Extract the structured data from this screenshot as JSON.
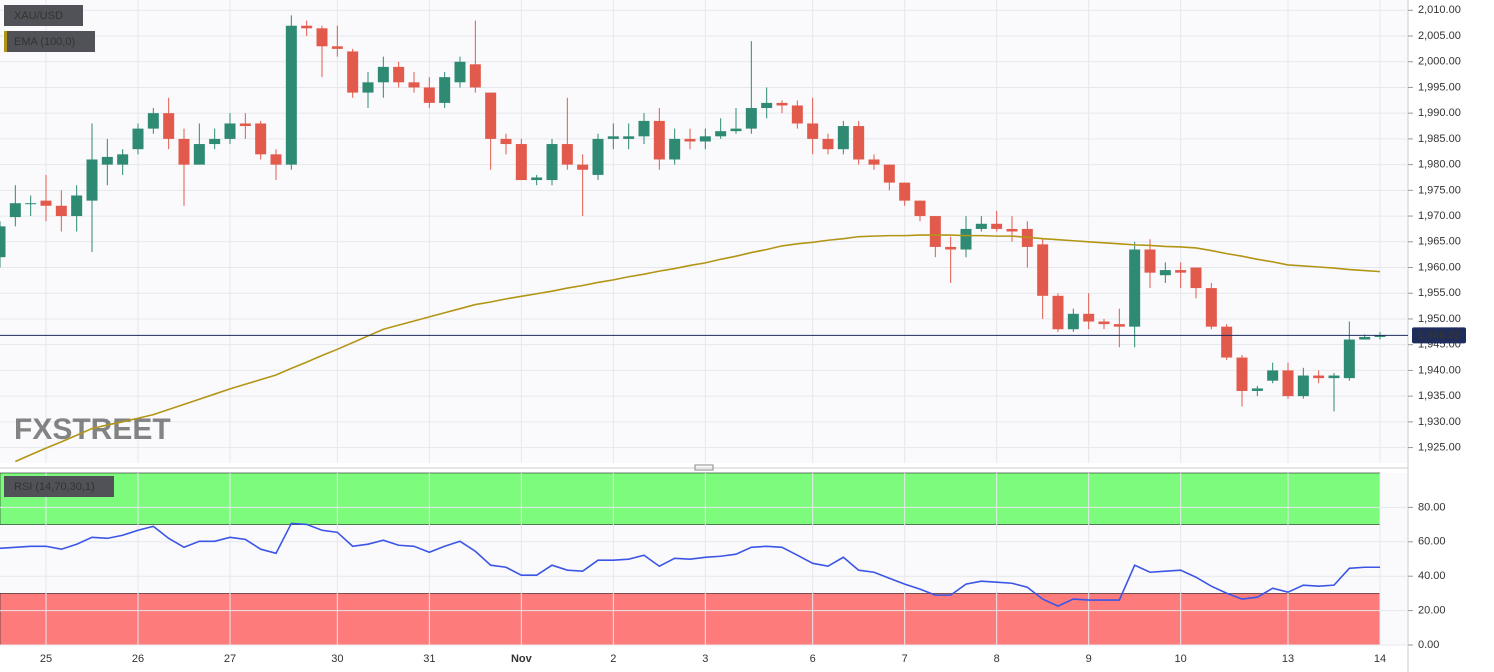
{
  "chart_data": [
    {
      "type": "candlestick",
      "title": "XAU/USD",
      "series": [
        {
          "name": "XAU/USD",
          "up_color": "#2e8a73",
          "down_color": "#e15a4c",
          "open": [
            1962,
            1969.8,
            1972.5,
            1973,
            1972,
            1970,
            1973,
            1980,
            1980,
            1983,
            1987,
            1990,
            1985,
            1980,
            1984,
            1985,
            1988,
            1988,
            1982,
            1980,
            2007,
            2006.5,
            2003,
            2002,
            1994,
            1996,
            1999,
            1996,
            1995,
            1992,
            1996,
            1999.5,
            1994,
            1985,
            1984,
            1977,
            1977,
            1984,
            1980,
            1978,
            1985,
            1985,
            1985.5,
            1988.5,
            1981,
            1985,
            1984.5,
            1985.5,
            1986.5,
            1987,
            1991,
            1992,
            1991.5,
            1988,
            1985,
            1983,
            1987.5,
            1981,
            1980,
            1976.5,
            1973,
            1970,
            1964,
            1963.5,
            1967.5,
            1968.5,
            1967.5,
            1967.5,
            1964.5,
            1954.5,
            1948,
            1951,
            1949.5,
            1949,
            1948.5,
            1963.5,
            1958.5,
            1959.5,
            1960,
            1956,
            1948.5,
            1942.5,
            1936,
            1938,
            1940,
            1935,
            1939,
            1938.5,
            1938.5,
            1946,
            1946.5
          ],
          "high": [
            1969,
            1976,
            1974,
            1978,
            1975,
            1976,
            1988,
            1985,
            1983,
            1988,
            1991,
            1993,
            1987,
            1988,
            1987,
            1990,
            1990,
            1988.5,
            1983,
            2009,
            2008,
            2007,
            2007,
            2002.5,
            1998,
            2001,
            2000,
            1998,
            1997,
            1998,
            2001,
            2008,
            1994,
            1986,
            1985,
            1978,
            1985,
            1993,
            1982,
            1986,
            1988,
            1988,
            1990,
            1991,
            1987,
            1987,
            1987,
            1989,
            1991,
            2004,
            1995,
            1992.5,
            1992.5,
            1993,
            1986,
            1988.5,
            1988.5,
            1982,
            1980,
            1976.5,
            1973,
            1970,
            1966,
            1970,
            1970,
            1971,
            1970,
            1969,
            1965.5,
            1955,
            1952,
            1955,
            1950,
            1952,
            1965,
            1965.5,
            1961,
            1961,
            1960,
            1957,
            1949,
            1943,
            1937,
            1941.5,
            1941.5,
            1940.5,
            1940,
            1939.5,
            1949.5,
            1947,
            1947.5
          ],
          "low": [
            1960,
            1968,
            1970,
            1969,
            1967,
            1967,
            1963,
            1976,
            1978,
            1982,
            1986,
            1983,
            1972,
            1980,
            1983,
            1984,
            1985,
            1981,
            1977,
            1979,
            2005,
            1997,
            2001,
            1993,
            1991,
            1993,
            1995,
            1994,
            1991,
            1991,
            1995,
            1994,
            1979,
            1982,
            1977,
            1976,
            1976,
            1979,
            1970,
            1977,
            1983,
            1983,
            1984,
            1979,
            1980,
            1983,
            1983,
            1985,
            1986,
            1986,
            1989,
            1990,
            1987,
            1982,
            1982,
            1982,
            1980,
            1979,
            1975,
            1972,
            1969,
            1962,
            1957,
            1962,
            1967,
            1967,
            1965,
            1960,
            1950,
            1947.5,
            1947.5,
            1948,
            1948,
            1944.5,
            1944.5,
            1956,
            1957,
            1956,
            1954,
            1948,
            1942,
            1933,
            1935,
            1937.5,
            1934.5,
            1934.5,
            1937.5,
            1932,
            1938,
            1946,
            1946
          ],
          "close": [
            1968,
            1972.5,
            1972.5,
            1972,
            1970,
            1974,
            1981,
            1981.5,
            1982,
            1987,
            1990,
            1985,
            1980,
            1984,
            1985,
            1988,
            1987.5,
            1982,
            1980,
            2007,
            2006.5,
            2003,
            2002.5,
            1994,
            1996,
            1999,
            1996,
            1995,
            1992,
            1997,
            2000,
            1995,
            1985,
            1984,
            1977,
            1977.5,
            1984,
            1980,
            1979,
            1985,
            1985.5,
            1985.5,
            1988.5,
            1981,
            1985,
            1984.5,
            1985.5,
            1986.5,
            1987,
            1991,
            1992,
            1991.5,
            1988,
            1985,
            1983,
            1987.5,
            1981,
            1980,
            1976.5,
            1973,
            1970,
            1964,
            1963.5,
            1967.5,
            1968.5,
            1967.5,
            1967,
            1964,
            1954.5,
            1948,
            1951,
            1949.5,
            1949,
            1948.5,
            1963.5,
            1959,
            1959.5,
            1959,
            1956,
            1948.5,
            1942.5,
            1936,
            1936.5,
            1940,
            1935,
            1939,
            1938.5,
            1939,
            1946,
            1946.5,
            1946.82
          ]
        },
        {
          "name": "EMA (100,0)",
          "type": "line",
          "color": "#b39516",
          "values": [
            null,
            1922.3,
            1923.6,
            1924.9,
            1926.1,
            1927.4,
            1928.7,
            1929.4,
            1930.0,
            1930.7,
            1931.4,
            1932.4,
            1933.4,
            1934.4,
            1935.4,
            1936.4,
            1937.3,
            1938.2,
            1939.1,
            1940.4,
            1941.6,
            1942.9,
            1944.1,
            1945.4,
            1946.7,
            1948.0,
            1948.8,
            1949.6,
            1950.4,
            1951.2,
            1952.0,
            1952.8,
            1953.3,
            1953.9,
            1954.4,
            1954.9,
            1955.4,
            1956.0,
            1956.5,
            1957.1,
            1957.6,
            1958.2,
            1958.7,
            1959.3,
            1959.8,
            1960.4,
            1960.9,
            1961.6,
            1962.2,
            1962.9,
            1963.5,
            1964.2,
            1964.6,
            1964.9,
            1965.3,
            1965.6,
            1966.0,
            1966.1,
            1966.2,
            1966.2,
            1966.3,
            1966.3,
            1966.3,
            1966.2,
            1966.2,
            1966.1,
            1966.1,
            1965.9,
            1965.6,
            1965.4,
            1965.2,
            1965.0,
            1964.8,
            1964.6,
            1964.4,
            1964.3,
            1964.1,
            1964.0,
            1963.8,
            1963.3,
            1962.7,
            1962.2,
            1961.6,
            1961.1,
            1960.5,
            1960.3,
            1960.1,
            1959.9,
            1959.6,
            1959.4,
            1959.2
          ]
        }
      ],
      "last_price": {
        "value": 1946.82,
        "label": "1,946.82"
      },
      "watermark": "FXSTREET",
      "ylim": [
        1922,
        2012
      ],
      "yticks": [
        {
          "value": 1925,
          "label": "1,925.00"
        },
        {
          "value": 1930,
          "label": "1,930.00"
        },
        {
          "value": 1935,
          "label": "1,935.00"
        },
        {
          "value": 1940,
          "label": "1,940.00"
        },
        {
          "value": 1945,
          "label": "1,945.00"
        },
        {
          "value": 1950,
          "label": "1,950.00"
        },
        {
          "value": 1955,
          "label": "1,955.00"
        },
        {
          "value": 1960,
          "label": "1,960.00"
        },
        {
          "value": 1965,
          "label": "1,965.00"
        },
        {
          "value": 1970,
          "label": "1,970.00"
        },
        {
          "value": 1975,
          "label": "1,975.00"
        },
        {
          "value": 1980,
          "label": "1,980.00"
        },
        {
          "value": 1985,
          "label": "1,985.00"
        },
        {
          "value": 1990,
          "label": "1,990.00"
        },
        {
          "value": 1995,
          "label": "1,995.00"
        },
        {
          "value": 2000,
          "label": "2,000.00"
        },
        {
          "value": 2005,
          "label": "2,005.00"
        },
        {
          "value": 2010,
          "label": "2,010.00"
        }
      ],
      "grid": true
    },
    {
      "type": "line",
      "title": "RSI (14,70,30,1)",
      "categories": [
        null,
        null,
        null,
        "25",
        null,
        null,
        null,
        null,
        null,
        "26",
        null,
        null,
        null,
        null,
        null,
        "27",
        null,
        null,
        null,
        null,
        null,
        null,
        "30",
        null,
        null,
        null,
        null,
        null,
        "31",
        null,
        null,
        null,
        null,
        null,
        "Nov",
        null,
        null,
        null,
        null,
        null,
        "2",
        null,
        null,
        null,
        null,
        null,
        "3",
        null,
        null,
        null,
        null,
        null,
        null,
        "6",
        null,
        null,
        null,
        null,
        null,
        "7",
        null,
        null,
        null,
        null,
        null,
        "8",
        null,
        null,
        null,
        null,
        null,
        "9",
        null,
        null,
        null,
        null,
        null,
        "10",
        null,
        null,
        null,
        null,
        null,
        null,
        "13",
        null,
        null,
        null,
        null,
        null,
        "14"
      ],
      "series": [
        {
          "name": "RSI",
          "color": "#3b55e6",
          "values": [
            56.2,
            56.8,
            57.4,
            57.4,
            55.7,
            58.6,
            62.6,
            62.0,
            63.8,
            66.7,
            69.0,
            62.0,
            56.8,
            60.3,
            60.3,
            62.6,
            61.4,
            55.7,
            53.3,
            70.7,
            70.1,
            66.7,
            65.5,
            57.4,
            58.6,
            60.9,
            58.0,
            57.4,
            53.9,
            57.4,
            60.3,
            54.5,
            46.4,
            45.2,
            40.6,
            40.6,
            46.4,
            43.5,
            42.9,
            49.3,
            49.3,
            49.9,
            52.2,
            45.8,
            50.4,
            49.9,
            51.0,
            51.6,
            52.8,
            56.8,
            57.4,
            56.8,
            52.2,
            47.5,
            45.8,
            51.0,
            43.5,
            42.3,
            38.8,
            35.4,
            32.5,
            29.0,
            29.0,
            35.4,
            37.1,
            36.5,
            35.9,
            33.6,
            26.7,
            22.6,
            26.7,
            26.1,
            26.1,
            26.1,
            46.4,
            42.3,
            42.9,
            43.5,
            39.4,
            34.2,
            30.1,
            26.7,
            27.8,
            33.0,
            30.7,
            34.8,
            34.2,
            34.8,
            44.6,
            45.2,
            45.2
          ]
        }
      ],
      "overbought": 70,
      "oversold": 30,
      "overbought_color": "#7cfb7c",
      "oversold_color": "#fd7b7b",
      "ylim": [
        0,
        100
      ],
      "yticks": [
        {
          "value": 0,
          "label": "0.00"
        },
        {
          "value": 20,
          "label": "20.00"
        },
        {
          "value": 40,
          "label": "40.00"
        },
        {
          "value": 60,
          "label": "60.00"
        },
        {
          "value": 80,
          "label": "80.00"
        }
      ],
      "grid": true
    }
  ]
}
